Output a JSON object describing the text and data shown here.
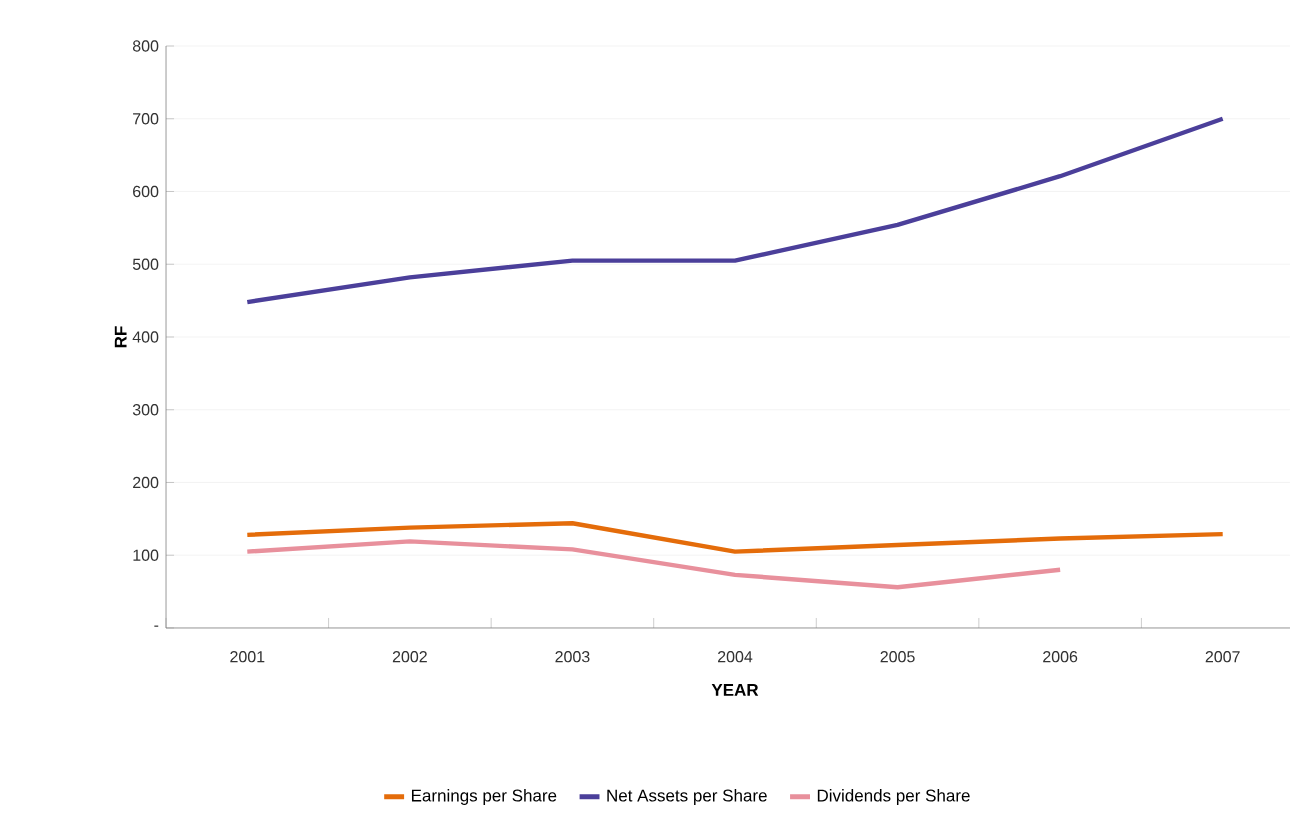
{
  "chart_data": {
    "type": "line",
    "xlabel": "YEAR",
    "ylabel": "RF",
    "categories": [
      "2001",
      "2002",
      "2003",
      "2004",
      "2005",
      "2006",
      "2007"
    ],
    "series": [
      {
        "name": "Earnings per Share",
        "color": "#e46c0a",
        "values": [
          128,
          138,
          144,
          105,
          114,
          123,
          129
        ]
      },
      {
        "name": "Net Assets per Share",
        "color": "#4b3f9a",
        "values": [
          448,
          482,
          505,
          505,
          554,
          621,
          700
        ]
      },
      {
        "name": "Dividends per Share",
        "color": "#e8909c",
        "values": [
          105,
          119,
          108,
          73,
          56,
          80,
          null
        ]
      }
    ],
    "ylim": [
      0,
      800
    ],
    "yticks": [
      {
        "value": 0,
        "label": "-"
      },
      100,
      200,
      300,
      400,
      500,
      600,
      700,
      800
    ],
    "grid": "y",
    "legend": "bottom",
    "marker": "none",
    "line_style": "solid"
  }
}
